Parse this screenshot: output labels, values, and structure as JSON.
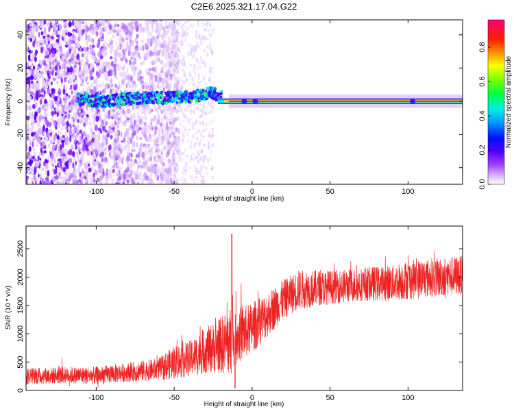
{
  "title": "C2E6.2025.321.17.04.G22",
  "colors": {
    "snr_line": "#ee2222",
    "axis": "#000000",
    "ridge_core": "#e01010",
    "spec_low": "#7a00ff",
    "spec_mid": "#00e0ff"
  },
  "chart_data": [
    {
      "type": "heatmap",
      "name": "spectrogram",
      "title": "C2E6.2025.321.17.04.G22",
      "xlabel": "Height of straight line (km)",
      "ylabel": "Frequency (Hz)",
      "xlim": [
        -145,
        135
      ],
      "ylim": [
        -50,
        49
      ],
      "xticks": [
        -100,
        -50,
        0,
        50,
        100
      ],
      "yticks": [
        -40,
        -20,
        0,
        20,
        40
      ],
      "colorbar": {
        "label": "Normalized spectral amplitude",
        "range": [
          0,
          0.96
        ],
        "ticks": [
          0.0,
          0.2,
          0.4,
          0.6,
          0.8
        ],
        "tick_labels": [
          "0.0",
          "0.2",
          "0.4",
          "0.6",
          "0.8"
        ],
        "colormap": [
          "#ffffff",
          "#cc88ff",
          "#8800ff",
          "#0000ff",
          "#00ffff",
          "#00ff00",
          "#ffff00",
          "#ff8800",
          "#ff0000",
          "#ff0066"
        ]
      },
      "features": {
        "noise_region_x": [
          -145,
          -55
        ],
        "sparse_noise_x": [
          -55,
          -25
        ],
        "spectral_ridge": {
          "x": [
            -110,
            -95,
            -80,
            -60,
            -40,
            -25,
            -15,
            0,
            15,
            50,
            100,
            135
          ],
          "freq": [
            1,
            0,
            1.5,
            2,
            2.5,
            5,
            0,
            0,
            0,
            0,
            0,
            0
          ],
          "peak_amplitude": [
            0.3,
            0.35,
            0.35,
            0.4,
            0.45,
            0.5,
            0.8,
            0.85,
            0.9,
            0.9,
            0.9,
            0.85
          ]
        }
      }
    },
    {
      "type": "line",
      "name": "snr",
      "xlabel": "Height of straight line (km)",
      "ylabel": "SNR (10 * v/v)",
      "xlim": [
        -145,
        135
      ],
      "ylim": [
        0,
        2900
      ],
      "xticks": [
        -100,
        -50,
        0,
        50,
        100
      ],
      "yticks": [
        0,
        500,
        1000,
        1500,
        2000,
        2500
      ],
      "series": [
        {
          "name": "SNR",
          "x": [
            -145,
            -120,
            -100,
            -80,
            -60,
            -50,
            -40,
            -30,
            -20,
            -15,
            -12,
            -10,
            0,
            10,
            20,
            30,
            50,
            70,
            90,
            100,
            110,
            120,
            135
          ],
          "mean": [
            250,
            270,
            260,
            320,
            370,
            500,
            560,
            700,
            800,
            850,
            900,
            950,
            1100,
            1350,
            1600,
            1780,
            1820,
            1870,
            1900,
            1950,
            1980,
            2000,
            2030
          ],
          "spread": [
            150,
            150,
            160,
            170,
            200,
            300,
            320,
            400,
            500,
            600,
            600,
            500,
            450,
            400,
            350,
            350,
            300,
            300,
            320,
            350,
            350,
            350,
            350
          ]
        }
      ]
    }
  ]
}
